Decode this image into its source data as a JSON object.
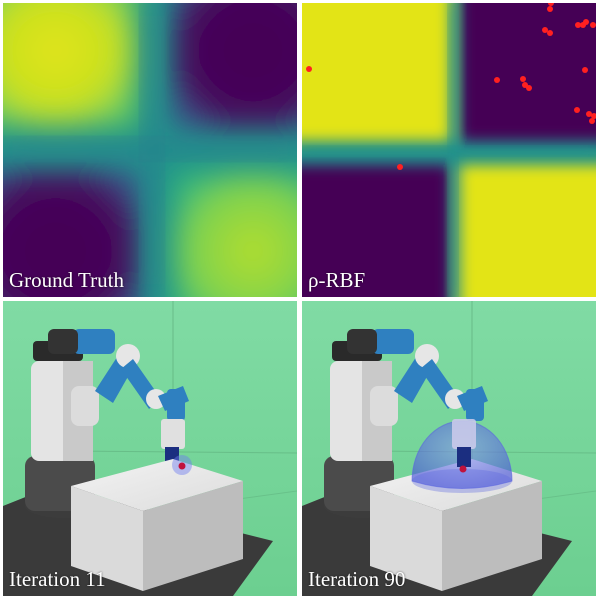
{
  "panels": {
    "ground_truth": {
      "caption": "Ground Truth"
    },
    "rho_rbf": {
      "caption": "ρ-RBF"
    },
    "iteration_11": {
      "caption": "Iteration 11"
    },
    "iteration_90": {
      "caption": "Iteration 90"
    }
  },
  "colors": {
    "viridis_low": "#440154",
    "viridis_mid": "#21918c",
    "viridis_high": "#e3e419",
    "sample_point": "#ff2020",
    "floor_green": "#78d79c",
    "robot_blue": "#2f80c0",
    "robot_white": "#e8e8e8",
    "workspace_sphere": "#6f7cf0"
  }
}
